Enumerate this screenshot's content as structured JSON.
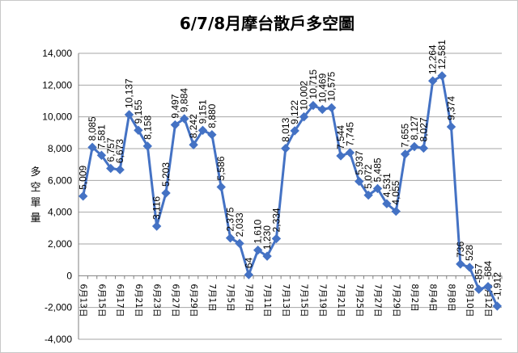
{
  "chart_data": {
    "type": "line",
    "title": "6/7/8月摩台散戶多空圖",
    "ylabel": "多空單量",
    "xlabel": "",
    "ylim": [
      -4000,
      14000
    ],
    "y_ticks": [
      "-4,000",
      "-2,000",
      "0",
      "2,000",
      "4,000",
      "6,000",
      "8,000",
      "10,000",
      "12,000",
      "14,000"
    ],
    "grid": "horizontal",
    "legend": "none",
    "series_color": "#4472c4",
    "categories": [
      "6月13日",
      "",
      "6月15日",
      "",
      "6月17日",
      "",
      "6月21日",
      "",
      "6月23日",
      "",
      "6月27日",
      "",
      "6月29日",
      "",
      "7月1日",
      "",
      "7月5日",
      "",
      "7月7日",
      "",
      "7月11日",
      "",
      "7月13日",
      "",
      "7月15日",
      "",
      "7月19日",
      "",
      "7月21日",
      "",
      "7月25日",
      "",
      "7月27日",
      "",
      "7月29日",
      "",
      "8月2日",
      "",
      "8月4日",
      "",
      "8月8日",
      "",
      "8月10日",
      "",
      "8月12日",
      ""
    ],
    "series": [
      {
        "values": [
          5009,
          8085,
          7581,
          6757,
          6673,
          10137,
          9155,
          8158,
          3116,
          5203,
          9497,
          9884,
          8242,
          9151,
          8880,
          5586,
          2375,
          2033,
          64,
          1610,
          1230,
          2334,
          8013,
          9122,
          10002,
          10715,
          10469,
          10575,
          7544,
          7745,
          5937,
          5072,
          5485,
          4531,
          4055,
          7655,
          8127,
          8027,
          12264,
          12581,
          9374,
          736,
          528,
          -857,
          -684,
          -1912
        ],
        "labels": [
          "5,009",
          "8,085",
          "7,581",
          "6,757",
          "6,673",
          "10,137",
          "9,155",
          "8,158",
          "3,116",
          "5,203",
          "9,497",
          "9,884",
          "8,242",
          "9,151",
          "8,880",
          "5,586",
          "2,375",
          "2,033",
          "64",
          "1,610",
          "1,230",
          "2,334",
          "8,013",
          "9,122",
          "10,002",
          "10,715",
          "10,469",
          "10,575",
          "7,544",
          "7,745",
          "5,937",
          "5,072",
          "5,485",
          "4,531",
          "4,055",
          "7,655",
          "8,127",
          "8,027",
          "12,264",
          "12,581",
          "9,374",
          "736",
          "528",
          "-857",
          "-684",
          "-1,912"
        ]
      }
    ]
  }
}
